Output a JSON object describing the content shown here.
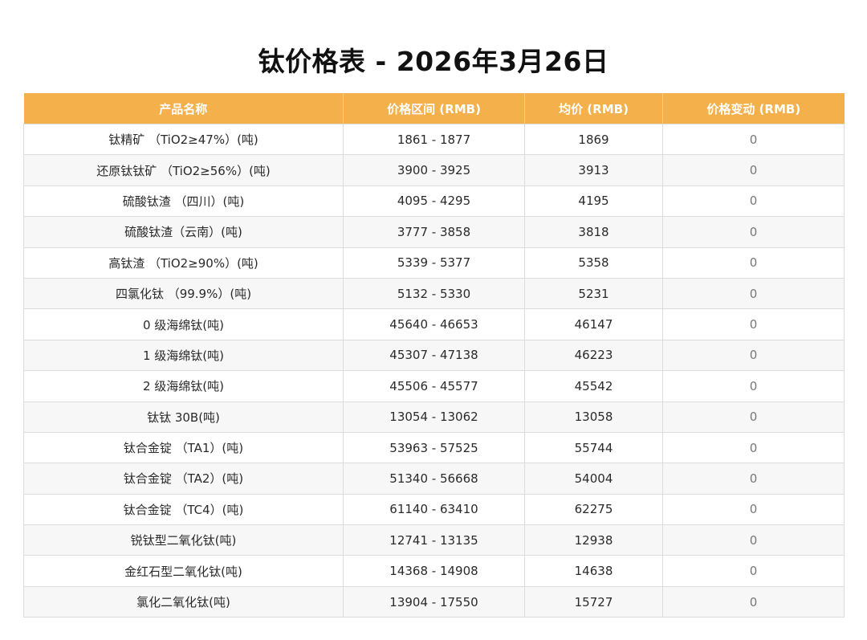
{
  "title": "钛价格表 - 2026年3月26日",
  "table": {
    "headers": [
      "产品名称",
      "价格区间 (RMB)",
      "均价 (RMB)",
      "价格变动 (RMB)"
    ],
    "rows": [
      {
        "name": "钛精矿 （TiO2≥47%）(吨)",
        "range": "1861 - 1877",
        "avg": "1869",
        "change": "0"
      },
      {
        "name": "还原钛钛矿 （TiO2≥56%）(吨)",
        "range": "3900 - 3925",
        "avg": "3913",
        "change": "0"
      },
      {
        "name": "硫酸钛渣 （四川）(吨)",
        "range": "4095 - 4295",
        "avg": "4195",
        "change": "0"
      },
      {
        "name": "硫酸钛渣（云南）(吨)",
        "range": "3777 - 3858",
        "avg": "3818",
        "change": "0"
      },
      {
        "name": "高钛渣 （TiO2≥90%）(吨)",
        "range": "5339 - 5377",
        "avg": "5358",
        "change": "0"
      },
      {
        "name": "四氯化钛 （99.9%）(吨)",
        "range": "5132 - 5330",
        "avg": "5231",
        "change": "0"
      },
      {
        "name": "0 级海绵钛(吨)",
        "range": "45640 - 46653",
        "avg": "46147",
        "change": "0"
      },
      {
        "name": "1 级海绵钛(吨)",
        "range": "45307 - 47138",
        "avg": "46223",
        "change": "0"
      },
      {
        "name": "2 级海绵钛(吨)",
        "range": "45506 - 45577",
        "avg": "45542",
        "change": "0"
      },
      {
        "name": "钛钛 30B(吨)",
        "range": "13054 - 13062",
        "avg": "13058",
        "change": "0"
      },
      {
        "name": "钛合金锭 （TA1）(吨)",
        "range": "53963 - 57525",
        "avg": "55744",
        "change": "0"
      },
      {
        "name": "钛合金锭 （TA2）(吨)",
        "range": "51340 - 56668",
        "avg": "54004",
        "change": "0"
      },
      {
        "name": "钛合金锭 （TC4）(吨)",
        "range": "61140 - 63410",
        "avg": "62275",
        "change": "0"
      },
      {
        "name": "锐钛型二氧化钛(吨)",
        "range": "12741 - 13135",
        "avg": "12938",
        "change": "0"
      },
      {
        "name": "金红石型二氧化钛(吨)",
        "range": "14368 - 14908",
        "avg": "14638",
        "change": "0"
      },
      {
        "name": "氯化二氧化钛(吨)",
        "range": "13904 - 17550",
        "avg": "15727",
        "change": "0"
      }
    ]
  },
  "colors": {
    "header_bg": "#f4b04a",
    "header_text": "#ffffff",
    "stripe": "#f7f7f7",
    "border": "#dcdcdc"
  }
}
